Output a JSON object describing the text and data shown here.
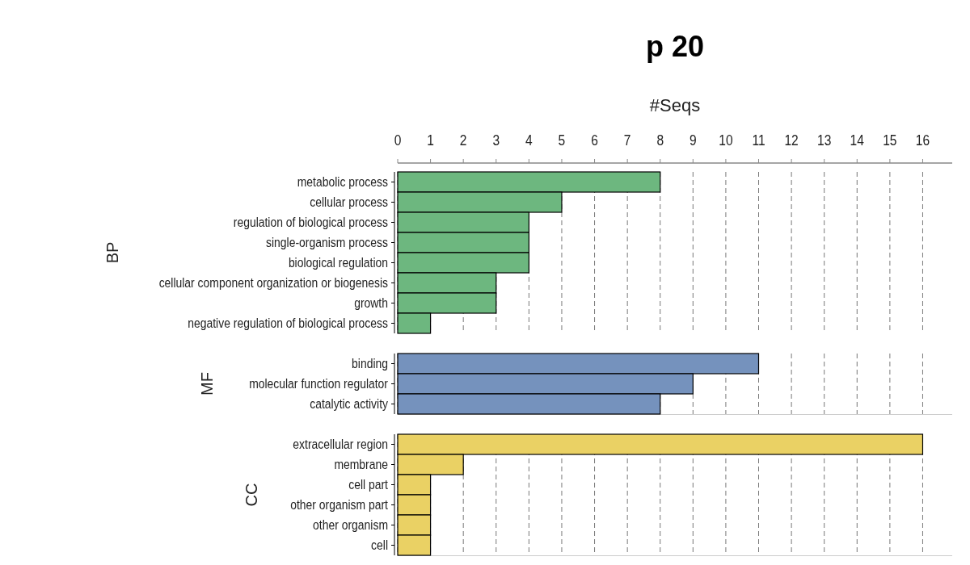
{
  "chart_data": [
    {
      "type": "bar",
      "orientation": "horizontal",
      "title": "p 20",
      "xlabel": "#Seqs",
      "ylabel": "BP",
      "categories": [
        "metabolic process",
        "cellular process",
        "regulation of biological process",
        "single-organism process",
        "biological regulation",
        "cellular component organization or biogenesis",
        "growth",
        "negative regulation of biological process"
      ],
      "values": [
        8,
        5,
        4,
        4,
        4,
        3,
        3,
        1
      ],
      "color": "#6db77f",
      "xlim": [
        0,
        16.9
      ],
      "xticks": [
        0,
        1,
        2,
        3,
        4,
        5,
        6,
        7,
        8,
        9,
        10,
        11,
        12,
        13,
        14,
        15,
        16
      ],
      "grid": "x",
      "line_style": "dashed"
    },
    {
      "type": "bar",
      "orientation": "horizontal",
      "ylabel": "MF",
      "categories": [
        "binding",
        "molecular function regulator",
        "catalytic activity"
      ],
      "values": [
        11,
        9,
        8
      ],
      "color": "#7592bd",
      "xlim": [
        0,
        16.9
      ],
      "xticks": [
        0,
        1,
        2,
        3,
        4,
        5,
        6,
        7,
        8,
        9,
        10,
        11,
        12,
        13,
        14,
        15,
        16
      ],
      "tick_labels": "y",
      "grid": "x",
      "line_style": "dashed"
    },
    {
      "type": "bar",
      "orientation": "horizontal",
      "ylabel": "CC",
      "categories": [
        "extracellular region",
        "membrane",
        "cell part",
        "other organism part",
        "other organism",
        "cell"
      ],
      "values": [
        16,
        2,
        1,
        1,
        1,
        1
      ],
      "color": "#ead164",
      "xlim": [
        0,
        16.9
      ],
      "xticks": [
        0,
        1,
        2,
        3,
        4,
        5,
        6,
        7,
        8,
        9,
        10,
        11,
        12,
        13,
        14,
        15,
        16
      ],
      "tick_labels": "y",
      "grid": "x",
      "line_style": "dashed"
    }
  ]
}
